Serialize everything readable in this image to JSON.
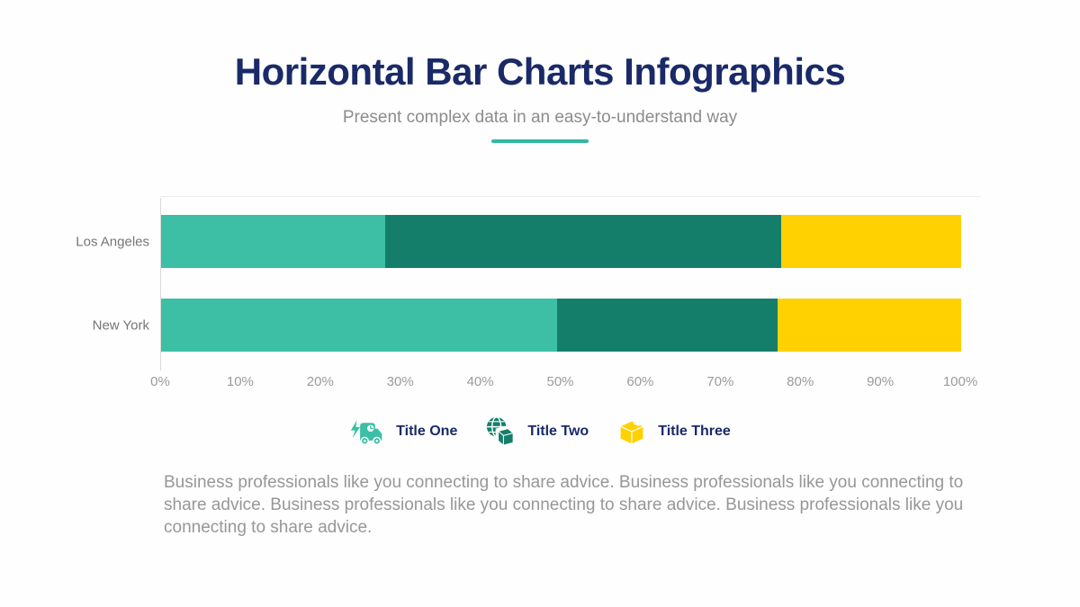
{
  "header": {
    "title": "Horizontal Bar Charts Infographics",
    "subtitle": "Present complex data in an easy-to-understand way"
  },
  "chart_data": {
    "type": "bar",
    "orientation": "horizontal",
    "stacked": true,
    "categories": [
      "Los Angeles",
      "New York"
    ],
    "series": [
      {
        "name": "Title One",
        "color": "#3CBFA4",
        "values": [
          28,
          49.5
        ]
      },
      {
        "name": "Title Two",
        "color": "#147E6B",
        "values": [
          49.5,
          27.5
        ]
      },
      {
        "name": "Title Three",
        "color": "#FFD100",
        "values": [
          22.5,
          23
        ]
      }
    ],
    "x_ticks": [
      "0%",
      "10%",
      "20%",
      "30%",
      "40%",
      "50%",
      "60%",
      "70%",
      "80%",
      "90%",
      "100%"
    ],
    "xlim": [
      0,
      100
    ],
    "xlabel": "",
    "ylabel": "",
    "grid": "left-axis-line-only",
    "legend_position": "bottom"
  },
  "legend": {
    "items": [
      {
        "label": "Title One",
        "icon": "delivery-truck-icon",
        "color": "#3CBFA4"
      },
      {
        "label": "Title Two",
        "icon": "globe-package-icon",
        "color": "#147E6B"
      },
      {
        "label": "Title Three",
        "icon": "package-box-icon",
        "color": "#FFD100"
      }
    ]
  },
  "body_text": {
    "paragraph": "Business professionals like you connecting to share advice. Business professionals like you connecting to share advice. Business professionals like you connecting to share advice. Business professionals like you connecting to share advice."
  },
  "colors": {
    "title_navy": "#1A2A68",
    "teal": "#3CBFA4",
    "dark_green": "#147E6B",
    "yellow": "#FFD100",
    "divider_teal": "#32B8A0",
    "subtitle_gray": "#8C8C8C",
    "tick_gray": "#9B9B9B",
    "category_gray": "#757575",
    "paragraph_gray": "#979797"
  }
}
